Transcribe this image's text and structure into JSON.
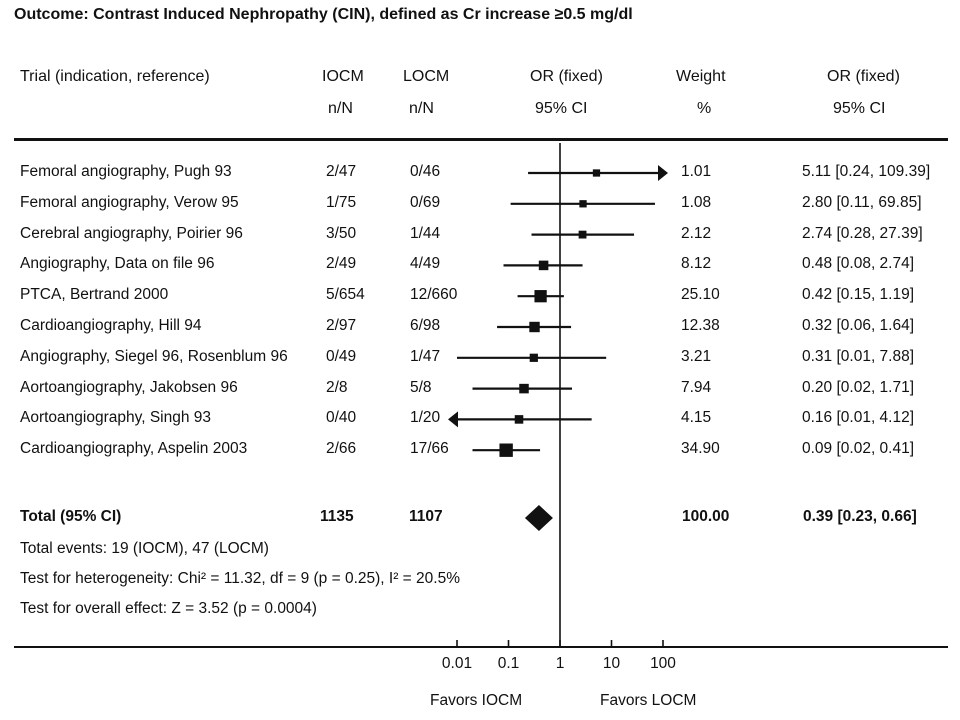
{
  "title": "Outcome:  Contrast Induced Nephropathy (CIN), defined as Cr increase ≥0.5 mg/dl",
  "headers": {
    "trial": "Trial (indication, reference)",
    "iocm": "IOCM",
    "iocm_sub": "n/N",
    "locm": "LOCM",
    "locm_sub": "n/N",
    "or_plot": "OR (fixed)",
    "or_plot_sub": "95% CI",
    "weight": "Weight",
    "weight_sub": "%",
    "or_text": "OR (fixed)",
    "or_text_sub": "95% CI"
  },
  "total": {
    "label": "Total (95% CI)",
    "iocm": "1135",
    "locm": "1107",
    "weight": "100.00",
    "or_text": "0.39 [0.23, 0.66]"
  },
  "notes": {
    "events": "Total events: 19 (IOCM), 47 (LOCM)",
    "heterogeneity": "Test for heterogeneity: Chi² = 11.32, df = 9 (p = 0.25), I² = 20.5%",
    "overall": "Test for overall effect: Z = 3.52 (p = 0.0004)"
  },
  "axis": {
    "ticks": [
      "0.01",
      "0.1",
      "1",
      "10",
      "100"
    ],
    "favors_left": "Favors IOCM",
    "favors_right": "Favors LOCM"
  },
  "chart_data": {
    "type": "forest",
    "scale": "log",
    "xlim": [
      0.01,
      100
    ],
    "reference_line": 1,
    "studies": [
      {
        "label": "Femoral angiography, Pugh 93",
        "iocm": "2/47",
        "locm": "0/46",
        "weight": "1.01",
        "or_text": "5.11 [0.24, 109.39]",
        "or": 5.11,
        "lo": 0.24,
        "hi": 109.39,
        "arrow": "right"
      },
      {
        "label": "Femoral angiography, Verow 95",
        "iocm": "1/75",
        "locm": "0/69",
        "weight": "1.08",
        "or_text": "2.80 [0.11, 69.85]",
        "or": 2.8,
        "lo": 0.11,
        "hi": 69.85
      },
      {
        "label": "Cerebral angiography, Poirier 96",
        "iocm": "3/50",
        "locm": "1/44",
        "weight": "2.12",
        "or_text": "2.74 [0.28, 27.39]",
        "or": 2.74,
        "lo": 0.28,
        "hi": 27.39
      },
      {
        "label": "Angiography, Data on file 96",
        "iocm": "2/49",
        "locm": "4/49",
        "weight": "8.12",
        "or_text": "0.48 [0.08, 2.74]",
        "or": 0.48,
        "lo": 0.08,
        "hi": 2.74
      },
      {
        "label": "PTCA, Bertrand 2000",
        "iocm": "5/654",
        "locm": "12/660",
        "weight": "25.10",
        "or_text": "0.42 [0.15, 1.19]",
        "or": 0.42,
        "lo": 0.15,
        "hi": 1.19
      },
      {
        "label": "Cardioangiography, Hill 94",
        "iocm": "2/97",
        "locm": "6/98",
        "weight": "12.38",
        "or_text": "0.32 [0.06, 1.64]",
        "or": 0.32,
        "lo": 0.06,
        "hi": 1.64
      },
      {
        "label": "Angiography, Siegel 96, Rosenblum 96",
        "iocm": "0/49",
        "locm": "1/47",
        "weight": "3.21",
        "or_text": "0.31 [0.01, 7.88]",
        "or": 0.31,
        "lo": 0.01,
        "hi": 7.88
      },
      {
        "label": "Aortoangiography, Jakobsen 96",
        "iocm": "2/8",
        "locm": "5/8",
        "weight": "7.94",
        "or_text": "0.20 [0.02, 1.71]",
        "or": 0.2,
        "lo": 0.02,
        "hi": 1.71
      },
      {
        "label": "Aortoangiography, Singh 93",
        "iocm": "0/40",
        "locm": "1/20",
        "weight": "4.15",
        "or_text": "0.16 [0.01, 4.12]",
        "or": 0.16,
        "lo": 0.01,
        "hi": 4.12,
        "arrow": "left"
      },
      {
        "label": "Cardioangiography, Aspelin 2003",
        "iocm": "2/66",
        "locm": "17/66",
        "weight": "34.90",
        "or_text": "0.09 [0.02, 0.41]",
        "or": 0.09,
        "lo": 0.02,
        "hi": 0.41
      }
    ],
    "pooled": {
      "or": 0.39,
      "lo": 0.23,
      "hi": 0.66,
      "weight": 100.0
    }
  }
}
